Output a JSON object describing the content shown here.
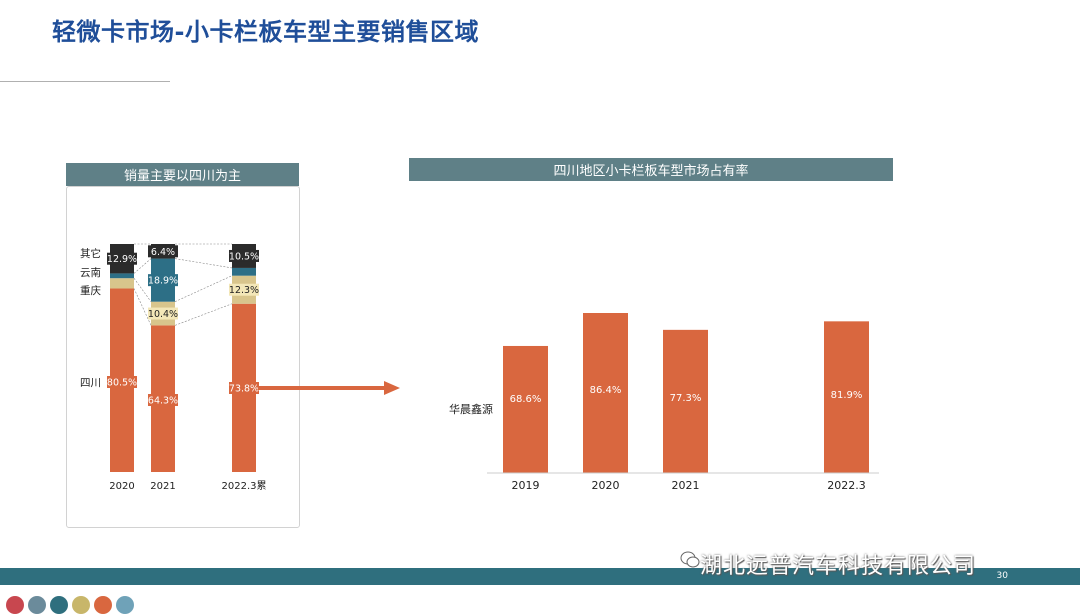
{
  "page": {
    "title": "轻微卡市场-小卡栏板车型主要销售区域",
    "page_number": "30",
    "watermark": "湖北远普汽车科技有限公司"
  },
  "colors": {
    "orange": "#d9673f",
    "tan": "#d8c58c",
    "teal": "#2d6f86",
    "black": "#2b2b2b",
    "header": "#5f8087",
    "footer": "#2f6f7e"
  },
  "footer_dots": [
    "#c8474f",
    "#6b8b9b",
    "#2f6f7e",
    "#c8b66a",
    "#d9673f",
    "#6fa2b8"
  ],
  "chart_data": [
    {
      "type": "bar",
      "stacked": true,
      "percent": true,
      "title": "销量主要以四川为主",
      "categories": [
        "2020",
        "2021",
        "2022.3累"
      ],
      "region_labels": [
        "其它",
        "云南",
        "重庆",
        "四川"
      ],
      "series": [
        {
          "name": "四川",
          "values": [
            80.5,
            64.3,
            73.8
          ],
          "labels": [
            "80.5%",
            "64.3%",
            "73.8%"
          ],
          "color": "#d9673f"
        },
        {
          "name": "重庆",
          "values": [
            4.5,
            10.4,
            12.3
          ],
          "labels": [
            "",
            "10.4%",
            "12.3%"
          ],
          "color": "#d8c58c"
        },
        {
          "name": "云南",
          "values": [
            2.1,
            18.9,
            3.4
          ],
          "labels": [
            "",
            "18.9%",
            ""
          ],
          "color": "#2d6f86"
        },
        {
          "name": "其它",
          "values": [
            12.9,
            6.4,
            10.5
          ],
          "labels": [
            "12.9%",
            "6.4%",
            "10.5%"
          ],
          "color": "#2b2b2b"
        }
      ],
      "ylim": [
        0,
        100
      ],
      "legend": "left-inline"
    },
    {
      "type": "bar",
      "title": "四川地区小卡栏板车型市场占有率",
      "series_label": "华晨鑫源",
      "categories": [
        "2019",
        "2020",
        "2021",
        "2022.3"
      ],
      "values": [
        68.6,
        86.4,
        77.3,
        81.9
      ],
      "labels": [
        "68.6%",
        "86.4%",
        "77.3%",
        "81.9%"
      ],
      "ylim": [
        0,
        86.4
      ]
    }
  ]
}
